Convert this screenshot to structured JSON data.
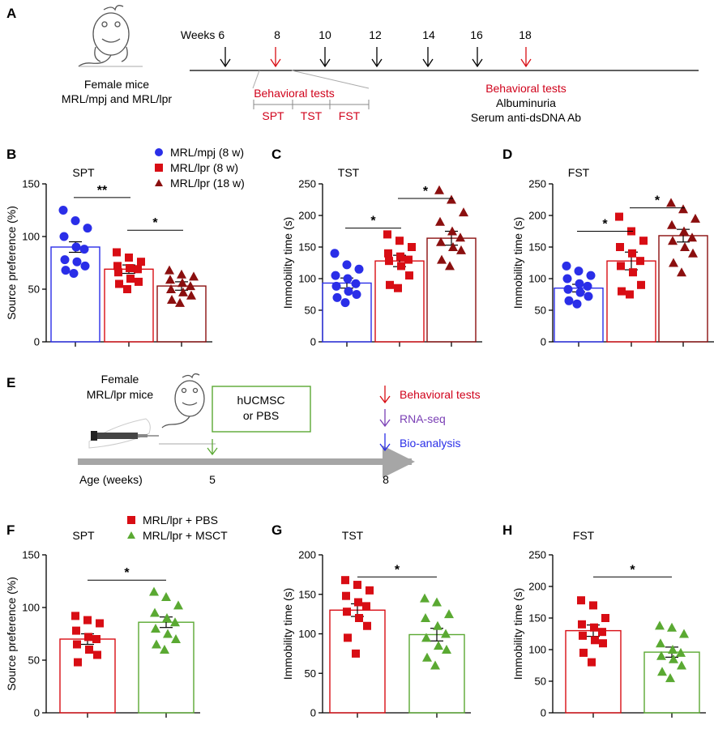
{
  "colors": {
    "blue": "#2a2ee8",
    "red": "#d80d14",
    "darkred": "#8b0f0f",
    "green": "#5aa932",
    "purple": "#7a3fb5",
    "gray": "#a6a6a6",
    "textred": "#d0021b"
  },
  "panelA": {
    "letter": "A",
    "mouse_line1": "Female mice",
    "mouse_line2": "MRL/mpj and MRL/lpr",
    "weeks": [
      "Weeks 6",
      "8",
      "10",
      "12",
      "14",
      "16",
      "18"
    ],
    "behavioral_tests": "Behavioral tests",
    "tests": [
      "SPT",
      "TST",
      "FST"
    ],
    "end_title": "Behavioral tests",
    "end_line1": "Albuminuria",
    "end_line2": "Serum anti-dsDNA Ab"
  },
  "panelE": {
    "letter": "E",
    "mouse_line1": "Female",
    "mouse_line2": "MRL/lpr mice",
    "treatment_line1": "hUCMSC",
    "treatment_line2": "or PBS",
    "legend": [
      "Behavioral tests",
      "RNA-seq",
      "Bio-analysis"
    ],
    "axis_label": "Age (weeks)",
    "tick5": "5",
    "tick8": "8"
  },
  "legend_BD": [
    "MRL/mpj (8 w)",
    "MRL/lpr (8 w)",
    "MRL/lpr (18 w)"
  ],
  "legend_FH": [
    "MRL/lpr + PBS",
    "MRL/lpr + MSCT"
  ],
  "chart_data": [
    {
      "panel": "B",
      "type": "bar",
      "title": "SPT",
      "ylabel": "Source preference (%)",
      "ylim": [
        0,
        150
      ],
      "yticks": [
        0,
        50,
        100,
        150
      ],
      "groups": [
        "MRL/mpj (8 w)",
        "MRL/lpr (8 w)",
        "MRL/lpr (18 w)"
      ],
      "means": [
        90,
        69,
        53
      ],
      "sem": [
        5,
        4,
        4
      ],
      "points": [
        [
          125,
          115,
          108,
          100,
          90,
          88,
          78,
          76,
          72,
          68,
          65
        ],
        [
          85,
          80,
          76,
          72,
          70,
          69,
          66,
          60,
          57,
          55,
          50
        ],
        [
          68,
          64,
          62,
          59,
          56,
          53,
          50,
          47,
          44,
          40,
          37
        ]
      ],
      "significance": [
        {
          "from": 0,
          "to": 1,
          "label": "**",
          "y": 137
        },
        {
          "from": 1,
          "to": 2,
          "label": "*",
          "y": 106
        }
      ]
    },
    {
      "panel": "C",
      "type": "bar",
      "title": "TST",
      "ylabel": "Immobility time (s)",
      "ylim": [
        0,
        250
      ],
      "yticks": [
        0,
        50,
        100,
        150,
        200,
        250
      ],
      "groups": [
        "MRL/mpj (8 w)",
        "MRL/lpr (8 w)",
        "MRL/lpr (18 w)"
      ],
      "means": [
        93,
        128,
        164
      ],
      "sem": [
        8,
        9,
        11
      ],
      "points": [
        [
          140,
          122,
          115,
          105,
          100,
          92,
          88,
          80,
          75,
          70,
          62
        ],
        [
          170,
          160,
          150,
          140,
          135,
          130,
          128,
          120,
          105,
          90,
          85
        ],
        [
          240,
          225,
          205,
          190,
          175,
          165,
          158,
          150,
          145,
          130,
          120
        ]
      ],
      "significance": [
        {
          "from": 0,
          "to": 1,
          "label": "*",
          "y": 180
        },
        {
          "from": 1,
          "to": 2,
          "label": "*",
          "y": 227
        }
      ]
    },
    {
      "panel": "D",
      "type": "bar",
      "title": "FST",
      "ylabel": "Immobility time (s)",
      "ylim": [
        0,
        250
      ],
      "yticks": [
        0,
        50,
        100,
        150,
        200,
        250
      ],
      "groups": [
        "MRL/mpj (8 w)",
        "MRL/lpr (8 w)",
        "MRL/lpr (18 w)"
      ],
      "means": [
        85,
        128,
        168
      ],
      "sem": [
        6,
        14,
        10
      ],
      "points": [
        [
          120,
          112,
          105,
          100,
          92,
          88,
          83,
          78,
          72,
          65,
          60
        ],
        [
          198,
          175,
          160,
          150,
          140,
          128,
          120,
          110,
          90,
          80,
          75
        ],
        [
          220,
          210,
          195,
          185,
          175,
          165,
          160,
          150,
          140,
          125,
          110
        ]
      ],
      "significance": [
        {
          "from": 0,
          "to": 1,
          "label": "*",
          "y": 175
        },
        {
          "from": 1,
          "to": 2,
          "label": "*",
          "y": 212
        }
      ]
    },
    {
      "panel": "F",
      "type": "bar",
      "title": "SPT",
      "ylabel": "Source preference (%)",
      "ylim": [
        0,
        150
      ],
      "yticks": [
        0,
        50,
        100,
        150
      ],
      "groups": [
        "MRL/lpr + PBS",
        "MRL/lpr + MSCT"
      ],
      "means": [
        70,
        86
      ],
      "sem": [
        5,
        5
      ],
      "points": [
        [
          92,
          88,
          85,
          78,
          72,
          70,
          65,
          60,
          55,
          48
        ],
        [
          115,
          110,
          102,
          95,
          90,
          86,
          80,
          75,
          70,
          65,
          60
        ]
      ],
      "significance": [
        {
          "from": 0,
          "to": 1,
          "label": "*",
          "y": 126
        }
      ]
    },
    {
      "panel": "G",
      "type": "bar",
      "title": "TST",
      "ylabel": "Immobility time (s)",
      "ylim": [
        0,
        200
      ],
      "yticks": [
        0,
        50,
        100,
        150,
        200
      ],
      "groups": [
        "MRL/lpr + PBS",
        "MRL/lpr + MSCT"
      ],
      "means": [
        130,
        99
      ],
      "sem": [
        8,
        8
      ],
      "points": [
        [
          168,
          162,
          155,
          148,
          140,
          135,
          128,
          120,
          110,
          95,
          75
        ],
        [
          145,
          140,
          125,
          120,
          110,
          100,
          95,
          85,
          80,
          70,
          60
        ]
      ],
      "significance": [
        {
          "from": 0,
          "to": 1,
          "label": "*",
          "y": 172
        }
      ]
    },
    {
      "panel": "H",
      "type": "bar",
      "title": "FST",
      "ylabel": "Immobility time (s)",
      "ylim": [
        0,
        250
      ],
      "yticks": [
        0,
        50,
        100,
        150,
        200,
        250
      ],
      "groups": [
        "MRL/lpr + PBS",
        "MRL/lpr + MSCT"
      ],
      "means": [
        130,
        96
      ],
      "sem": [
        9,
        8
      ],
      "points": [
        [
          178,
          170,
          150,
          140,
          135,
          128,
          122,
          115,
          110,
          95,
          80
        ],
        [
          138,
          135,
          125,
          110,
          100,
          95,
          90,
          85,
          75,
          65,
          55
        ]
      ],
      "significance": [
        {
          "from": 0,
          "to": 1,
          "label": "*",
          "y": 215
        }
      ]
    }
  ]
}
